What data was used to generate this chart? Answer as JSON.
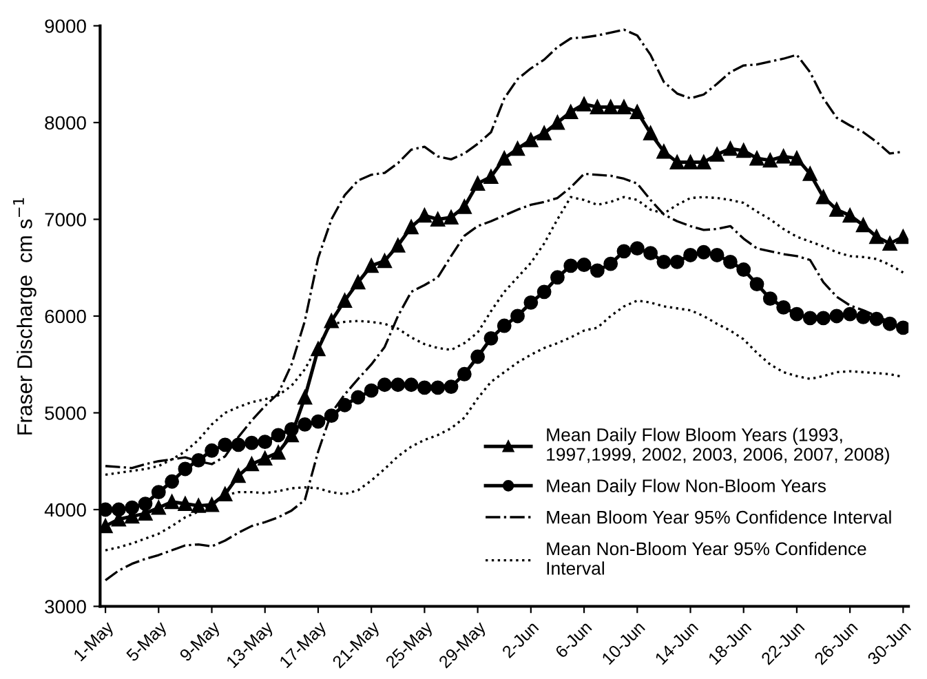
{
  "chart_data": {
    "type": "line",
    "ylabel": "Fraser Discharge  cm s$^{−1}$",
    "categories": [
      "1-May",
      null,
      null,
      null,
      "5-May",
      null,
      null,
      null,
      "9-May",
      null,
      null,
      null,
      "13-May",
      null,
      null,
      null,
      "17-May",
      null,
      null,
      null,
      "21-May",
      null,
      null,
      null,
      "25-May",
      null,
      null,
      null,
      "29-May",
      null,
      null,
      null,
      "2-Jun",
      null,
      null,
      null,
      "6-Jun",
      null,
      null,
      null,
      "10-Jun",
      null,
      null,
      null,
      "14-Jun",
      null,
      null,
      null,
      "18-Jun",
      null,
      null,
      null,
      "22-Jun",
      null,
      null,
      null,
      "26-Jun",
      null,
      null,
      null,
      "30-Jun"
    ],
    "ylim": [
      3000,
      9000
    ],
    "yticks": [
      3000,
      4000,
      5000,
      6000,
      7000,
      8000,
      9000
    ],
    "grid": false,
    "legend": "bottom right",
    "series": [
      {
        "name": "Mean Daily Flow Bloom Years (1993, 1997,1999, 2002, 2003, 2006, 2007, 2008)",
        "color": "#000000",
        "marker": "triangle",
        "line_style": "solid",
        "values": [
          3830,
          3900,
          3930,
          3960,
          4020,
          4080,
          4060,
          4040,
          4050,
          4160,
          4350,
          4470,
          4530,
          4590,
          4770,
          5160,
          5660,
          5950,
          6160,
          6350,
          6520,
          6570,
          6730,
          6920,
          7040,
          7000,
          7020,
          7130,
          7370,
          7440,
          7630,
          7730,
          7820,
          7890,
          8000,
          8110,
          8190,
          8160,
          8160,
          8160,
          8110,
          7890,
          7700,
          7590,
          7590,
          7590,
          7670,
          7730,
          7710,
          7630,
          7610,
          7650,
          7630,
          7470,
          7230,
          7100,
          7040,
          6940,
          6820,
          6750,
          6820
        ]
      },
      {
        "name": "Mean Daily Flow Non-Bloom Years",
        "color": "#000000",
        "marker": "circle",
        "line_style": "solid",
        "values": [
          4000,
          4000,
          4020,
          4060,
          4180,
          4290,
          4420,
          4510,
          4610,
          4670,
          4670,
          4690,
          4700,
          4770,
          4830,
          4880,
          4910,
          4970,
          5080,
          5160,
          5230,
          5290,
          5290,
          5290,
          5260,
          5260,
          5270,
          5400,
          5580,
          5770,
          5900,
          6000,
          6140,
          6250,
          6400,
          6520,
          6530,
          6470,
          6540,
          6670,
          6700,
          6650,
          6560,
          6560,
          6630,
          6660,
          6630,
          6560,
          6480,
          6330,
          6180,
          6090,
          6020,
          5980,
          5980,
          6000,
          6020,
          5990,
          5970,
          5920,
          5880
        ]
      },
      {
        "name": "Mean Bloom Year 95% Confidence Interval",
        "color": "#000000",
        "marker": "none",
        "line_style": "dashdot",
        "values": [
          4450,
          4440,
          4430,
          4470,
          4500,
          4520,
          4540,
          4500,
          4470,
          4550,
          4750,
          4920,
          5070,
          5200,
          5500,
          5950,
          6600,
          7000,
          7250,
          7400,
          7460,
          7480,
          7580,
          7720,
          7750,
          7650,
          7620,
          7680,
          7780,
          7900,
          8250,
          8450,
          8560,
          8650,
          8780,
          8870,
          8880,
          8900,
          8930,
          8960,
          8900,
          8700,
          8420,
          8300,
          8250,
          8290,
          8400,
          8520,
          8590,
          8600,
          8630,
          8660,
          8700,
          8520,
          8250,
          8050,
          7970,
          7900,
          7800,
          7680,
          7700
        ]
      },
      {
        "color": "#000000",
        "marker": "none",
        "line_style": "dashdot",
        "values": [
          3270,
          3370,
          3440,
          3490,
          3530,
          3580,
          3630,
          3640,
          3620,
          3680,
          3760,
          3830,
          3870,
          3920,
          3990,
          4100,
          4600,
          5000,
          5190,
          5350,
          5500,
          5680,
          6000,
          6250,
          6320,
          6400,
          6620,
          6830,
          6930,
          6980,
          7040,
          7100,
          7150,
          7180,
          7220,
          7330,
          7470,
          7460,
          7450,
          7420,
          7370,
          7200,
          7050,
          6980,
          6930,
          6890,
          6900,
          6930,
          6800,
          6700,
          6670,
          6640,
          6620,
          6580,
          6350,
          6200,
          6110,
          6060,
          6000,
          5940,
          5870
        ]
      },
      {
        "name": "Mean Non-Bloom Year 95% Confidence Interval",
        "color": "#000000",
        "marker": "none",
        "line_style": "dotted",
        "values": [
          4360,
          4380,
          4400,
          4420,
          4450,
          4520,
          4600,
          4720,
          4880,
          5000,
          5060,
          5110,
          5140,
          5180,
          5280,
          5450,
          5700,
          5920,
          5940,
          5950,
          5940,
          5920,
          5870,
          5780,
          5710,
          5670,
          5650,
          5720,
          5830,
          6050,
          6250,
          6400,
          6550,
          6750,
          7000,
          7230,
          7200,
          7150,
          7180,
          7230,
          7200,
          7100,
          7060,
          7150,
          7220,
          7230,
          7220,
          7200,
          7170,
          7080,
          7000,
          6900,
          6820,
          6770,
          6720,
          6660,
          6620,
          6610,
          6590,
          6530,
          6450
        ]
      },
      {
        "color": "#000000",
        "marker": "none",
        "line_style": "dotted",
        "values": [
          3580,
          3610,
          3650,
          3700,
          3750,
          3830,
          3920,
          3980,
          4060,
          4150,
          4180,
          4180,
          4170,
          4190,
          4220,
          4230,
          4220,
          4180,
          4160,
          4200,
          4300,
          4420,
          4550,
          4650,
          4720,
          4770,
          4840,
          4950,
          5150,
          5320,
          5420,
          5520,
          5600,
          5670,
          5720,
          5780,
          5850,
          5880,
          6000,
          6100,
          6160,
          6140,
          6100,
          6080,
          6060,
          6000,
          5920,
          5850,
          5760,
          5620,
          5500,
          5420,
          5380,
          5350,
          5380,
          5420,
          5430,
          5420,
          5410,
          5400,
          5370
        ]
      }
    ]
  }
}
